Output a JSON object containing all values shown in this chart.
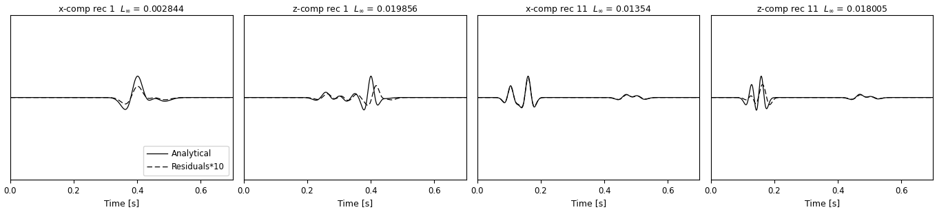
{
  "titles": [
    "x–comp rec 1  $L_{\\infty}$ = 0.002844",
    "z–comp rec 1  $L_{\\infty}$ = 0.019856",
    "x–comp rec 11  $L_{\\infty}$ = 0.01354",
    "z–comp rec 11  $L_{\\infty}$ = 0.018005"
  ],
  "titles_plain": [
    "x-comp rec 1  L",
    "z-comp rec 1  L",
    "x-comp rec 11  L",
    "z-comp rec 11  L"
  ],
  "title_values": [
    "0.002844",
    "0.019856",
    "0.01354",
    "0.018005"
  ],
  "xlabel": "Time [s]",
  "xlim": [
    0,
    0.7
  ],
  "xticks": [
    0,
    0.2,
    0.4,
    0.6
  ],
  "legend_labels": [
    "Analytical",
    "Residuals*10"
  ],
  "figsize": [
    13.6,
    3.08
  ],
  "dpi": 100
}
